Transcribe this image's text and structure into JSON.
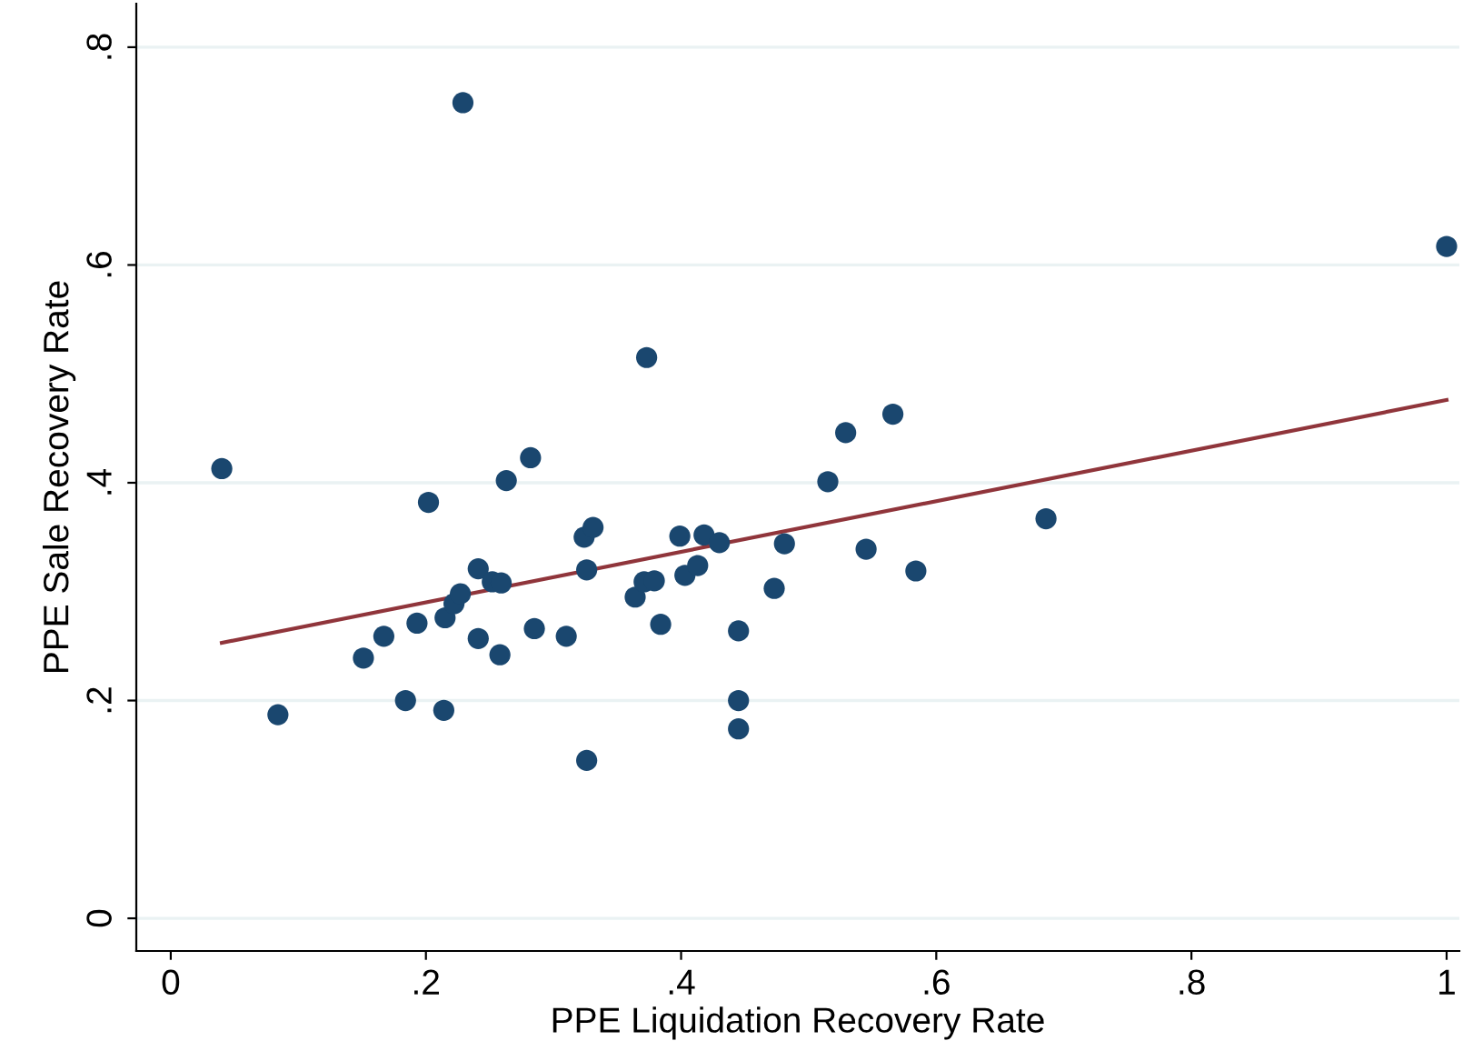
{
  "chart_data": {
    "type": "scatter",
    "xlabel": "PPE Liquidation Recovery Rate",
    "ylabel": "PPE Sale Recovery Rate",
    "xlim": [
      -0.027,
      1.01
    ],
    "ylim": [
      -0.03,
      0.84
    ],
    "xticks": [
      {
        "value": 0,
        "label": "0"
      },
      {
        "value": 0.2,
        "label": ".2"
      },
      {
        "value": 0.4,
        "label": ".4"
      },
      {
        "value": 0.6,
        "label": ".6"
      },
      {
        "value": 0.8,
        "label": ".8"
      },
      {
        "value": 1,
        "label": "1"
      }
    ],
    "yticks": [
      {
        "value": 0,
        "label": "0"
      },
      {
        "value": 0.2,
        "label": ".2"
      },
      {
        "value": 0.4,
        "label": ".4"
      },
      {
        "value": 0.6,
        "label": ".6"
      },
      {
        "value": 0.8,
        "label": ".8"
      }
    ],
    "grid": "y",
    "series": [
      {
        "marker": "circle",
        "color": "#1a476f",
        "x": [
          0.04,
          0.084,
          0.151,
          0.167,
          0.184,
          0.193,
          0.202,
          0.214,
          0.215,
          0.222,
          0.227,
          0.229,
          0.241,
          0.241,
          0.252,
          0.259,
          0.258,
          0.263,
          0.282,
          0.285,
          0.31,
          0.326,
          0.326,
          0.324,
          0.331,
          0.373,
          0.364,
          0.371,
          0.379,
          0.384,
          0.399,
          0.403,
          0.413,
          0.418,
          0.43,
          0.445,
          0.445,
          0.445,
          0.473,
          0.481,
          0.529,
          0.566,
          0.515,
          0.545,
          0.584,
          0.686,
          1.0
        ],
        "values": [
          0.413,
          0.187,
          0.239,
          0.259,
          0.2,
          0.271,
          0.382,
          0.191,
          0.276,
          0.289,
          0.298,
          0.749,
          0.321,
          0.257,
          0.309,
          0.308,
          0.242,
          0.402,
          0.423,
          0.266,
          0.259,
          0.145,
          0.32,
          0.35,
          0.359,
          0.515,
          0.295,
          0.309,
          0.31,
          0.27,
          0.351,
          0.315,
          0.324,
          0.352,
          0.345,
          0.264,
          0.2,
          0.174,
          0.303,
          0.344,
          0.446,
          0.463,
          0.401,
          0.339,
          0.319,
          0.367,
          0.617
        ]
      },
      {
        "type": "line",
        "color": "#90353b",
        "x": [
          0.04,
          1.0
        ],
        "values": [
          0.253,
          0.476
        ]
      }
    ]
  }
}
